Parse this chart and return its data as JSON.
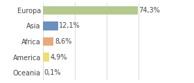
{
  "categories": [
    "Europa",
    "Asia",
    "Africa",
    "America",
    "Oceania"
  ],
  "values": [
    74.3,
    12.1,
    8.6,
    4.9,
    0.1
  ],
  "labels": [
    "74,3%",
    "12,1%",
    "8,6%",
    "4,9%",
    "0,1%"
  ],
  "bar_colors": [
    "#b5c98e",
    "#6b90c0",
    "#e8a97e",
    "#eedd77",
    "#f5c0a0"
  ],
  "background_color": "#ffffff",
  "xlim": [
    0,
    100
  ],
  "label_fontsize": 7.0,
  "tick_fontsize": 7.0,
  "grid_ticks": [
    0,
    25,
    50,
    75,
    100
  ],
  "grid_color": "#cccccc"
}
